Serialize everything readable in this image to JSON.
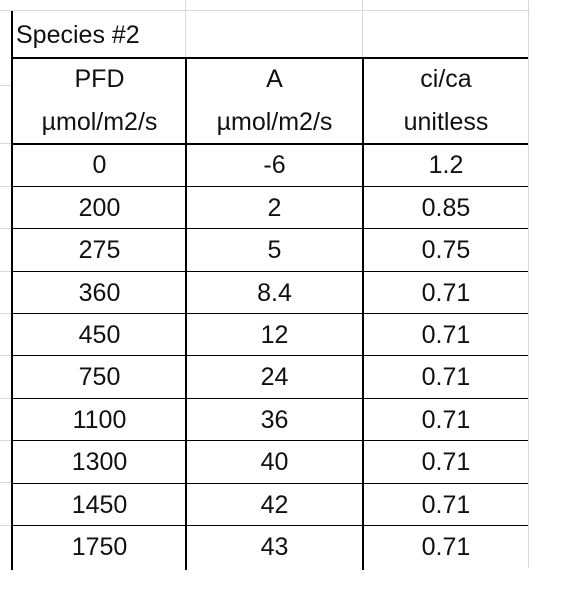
{
  "title_cell": "Species #2",
  "headers": [
    {
      "name": "PFD",
      "unit": "µmol/m2/s"
    },
    {
      "name": "A",
      "unit": "µmol/m2/s"
    },
    {
      "name": "ci/ca",
      "unit": "unitless"
    }
  ],
  "rows": [
    [
      "0",
      "-6",
      "1.2"
    ],
    [
      "200",
      "2",
      "0.85"
    ],
    [
      "275",
      "5",
      "0.75"
    ],
    [
      "360",
      "8.4",
      "0.71"
    ],
    [
      "450",
      "12",
      "0.71"
    ],
    [
      "750",
      "24",
      "0.71"
    ],
    [
      "1100",
      "36",
      "0.71"
    ],
    [
      "1300",
      "40",
      "0.71"
    ],
    [
      "1450",
      "42",
      "0.71"
    ],
    [
      "1750",
      "43",
      "0.71"
    ]
  ]
}
